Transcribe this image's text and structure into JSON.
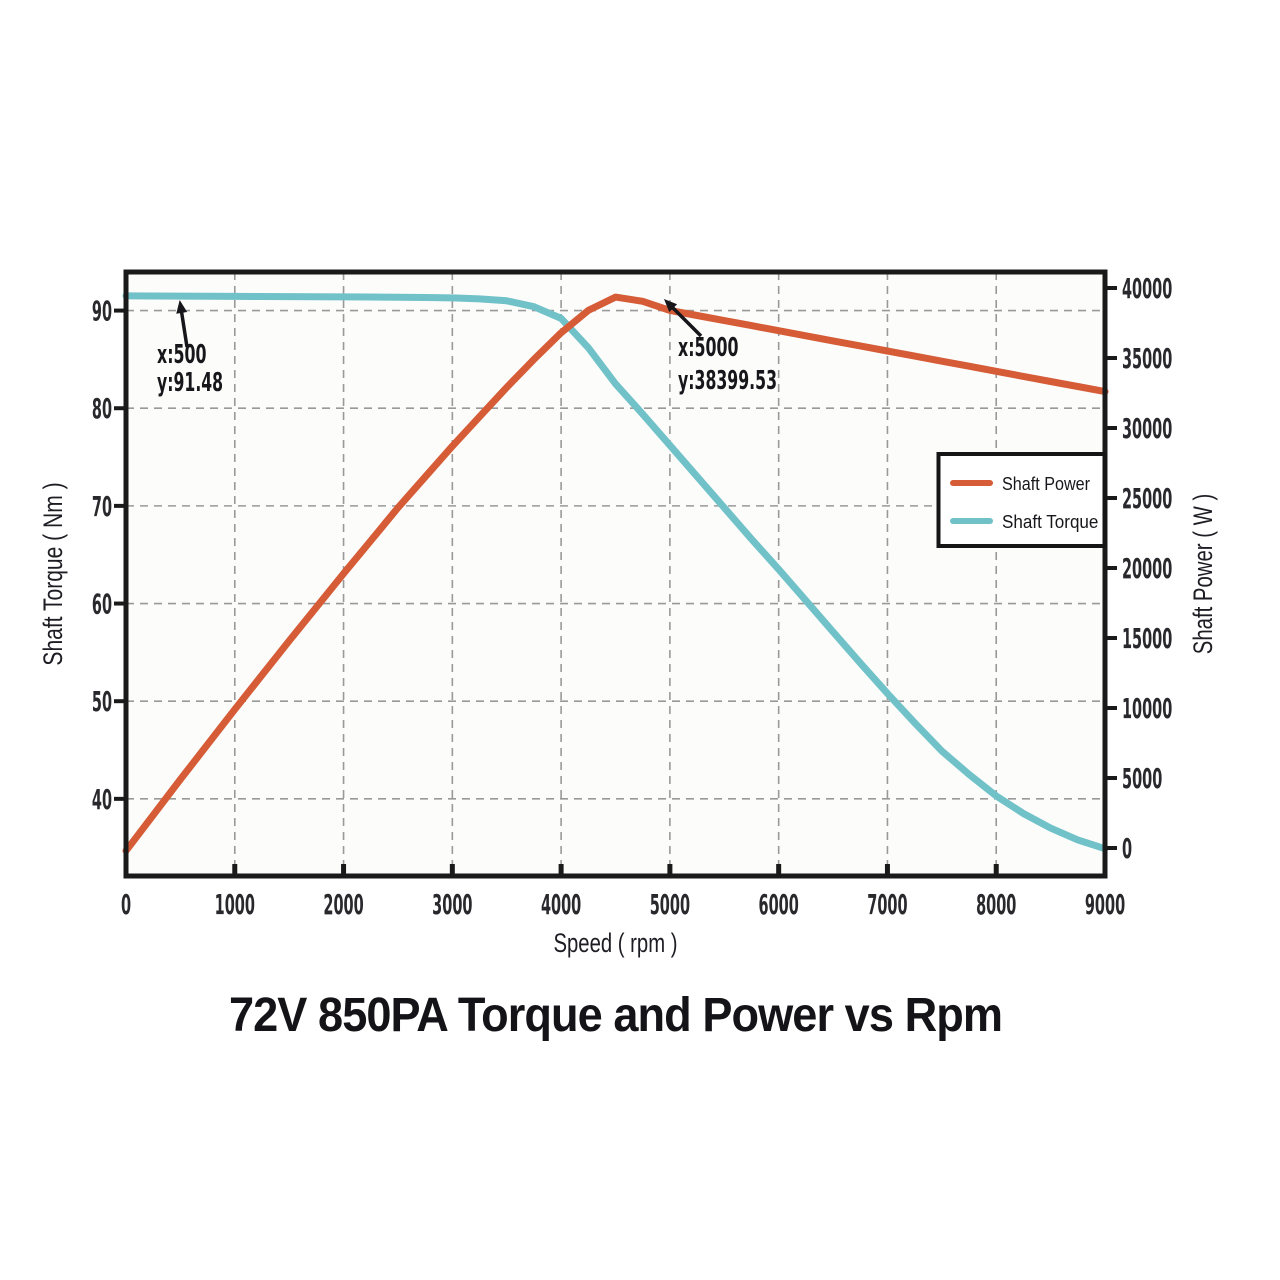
{
  "chart_data": {
    "type": "line",
    "title": "72V 850PA Torque and Power vs Rpm",
    "xlabel": "Speed ( rpm )",
    "ylabel_left": "Shaft Torque ( Nm )",
    "ylabel_right": "Shaft Power ( W )",
    "xlim": [
      0,
      9000
    ],
    "x_ticks": [
      0,
      1000,
      2000,
      3000,
      4000,
      5000,
      6000,
      7000,
      8000,
      9000
    ],
    "ylim_left": [
      32.1,
      93.95
    ],
    "yticks_left": [
      40,
      50,
      60,
      70,
      80,
      90
    ],
    "ylim_right": [
      -2000,
      41142.9
    ],
    "yticks_right": [
      0,
      5000,
      10000,
      15000,
      20000,
      25000,
      30000,
      35000,
      40000
    ],
    "grid": "dashed",
    "legend_position": "center-right",
    "x": [
      0,
      250,
      500,
      750,
      1000,
      1250,
      1500,
      1750,
      2000,
      2250,
      2500,
      2750,
      3000,
      3250,
      3500,
      3750,
      4000,
      4250,
      4500,
      4750,
      5000,
      5250,
      5500,
      5750,
      6000,
      6250,
      6500,
      6750,
      7000,
      7250,
      7500,
      7750,
      8000,
      8250,
      8500,
      8750,
      9000
    ],
    "series": [
      {
        "name": "Shaft Power",
        "axis": "right",
        "color": "#d55c36",
        "values": [
          -200,
          2350,
          4900,
          7400,
          9900,
          12350,
          14800,
          17200,
          19600,
          21950,
          24300,
          26500,
          28700,
          30800,
          32900,
          34900,
          36800,
          38400,
          39350,
          39050,
          38399.53,
          38037,
          37675,
          37312,
          36950,
          36587,
          36225,
          35862,
          35500,
          35137,
          34775,
          34412,
          34050,
          33687,
          33325,
          32962,
          32600
        ]
      },
      {
        "name": "Shaft Torque",
        "axis": "left",
        "color": "#71c2c8",
        "values": [
          91.5,
          91.49,
          91.48,
          91.47,
          91.45,
          91.44,
          91.43,
          91.41,
          91.4,
          91.39,
          91.37,
          91.34,
          91.3,
          91.2,
          91.0,
          90.4,
          89.2,
          86.2,
          82.5,
          79.4,
          76.2,
          73.0,
          69.8,
          66.6,
          63.5,
          60.3,
          57.1,
          53.9,
          50.8,
          47.8,
          44.9,
          42.5,
          40.3,
          38.5,
          37.0,
          35.8,
          34.9
        ]
      }
    ],
    "annotations": [
      {
        "line1": "x:500",
        "line2": "y:91.48",
        "x": 500,
        "y": 91.48,
        "series": "Shaft Torque"
      },
      {
        "line1": "x:5000",
        "line2": "y:38399.53",
        "x": 5000,
        "y": 38399.53,
        "series": "Shaft Power"
      }
    ],
    "colors": {
      "axis": "#1a1a1a",
      "grid": "#999999",
      "tick_text": "#28282d",
      "axis_title_text": "#1d1d24",
      "annotation_text": "#17171b",
      "plot_bg": "#fcfcfb",
      "page_bg": "#ffffff",
      "legend_border": "#151515",
      "legend_bg": "#ffffff"
    }
  },
  "legend": {
    "items": [
      {
        "label": "Shaft Power",
        "color": "#d55c36"
      },
      {
        "label": "Shaft Torque",
        "color": "#71c2c8"
      }
    ]
  }
}
